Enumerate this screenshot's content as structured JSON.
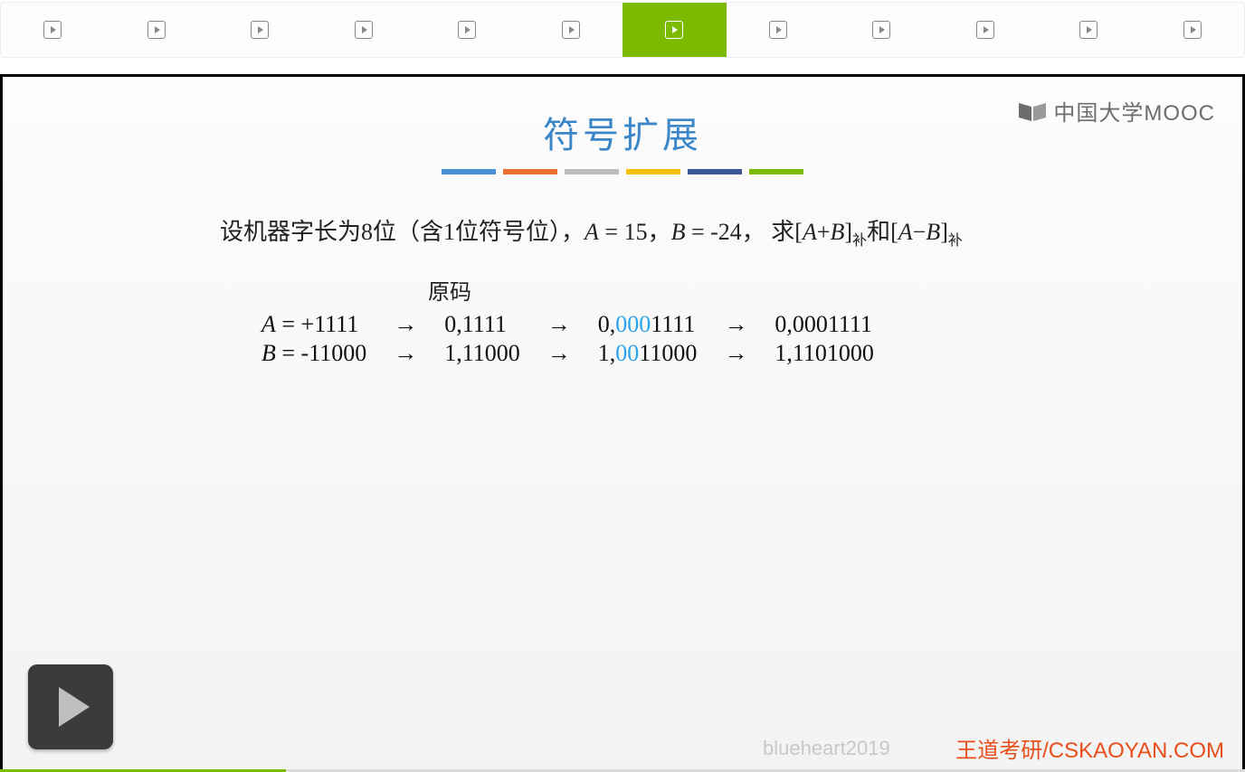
{
  "tabs": {
    "count": 12,
    "active_index": 6
  },
  "mooc_logo_text": "中国大学MOOC",
  "slide_title": "符号扩展",
  "color_bars": [
    "#4a90d9",
    "#e9702e",
    "#bdbdbd",
    "#f4c20d",
    "#3b5998",
    "#7cba00"
  ],
  "problem": {
    "prefix": "设机器字长为8位（含1位符号位），",
    "A_var": "A",
    "A_eq": " = 15，",
    "B_var": "B",
    "B_eq": " = -24，  求[",
    "expr1_l": "A",
    "expr1_op": "+",
    "expr1_r": "B",
    "mid1": "]",
    "sub1": "补",
    "mid2": "和[",
    "expr2_l": "A",
    "expr2_op": "−",
    "expr2_r": "B",
    "mid3": "]",
    "sub2": "补"
  },
  "yuanma_label": "原码",
  "rows": [
    {
      "var": "A",
      "eq": " = +1111",
      "c1": "0,1111",
      "c2": {
        "pre": "0,",
        "hl": "000",
        "post": "1111"
      },
      "c3": "0,0001111"
    },
    {
      "var": "B",
      "eq": " = -11000",
      "c1": "1,11000",
      "c2": {
        "pre": "1,",
        "hl": "00",
        "post": "11000"
      },
      "c3": "1,1101000"
    }
  ],
  "arrow": "→",
  "watermark1": "blueheart2019",
  "watermark2": "王道考研/CSKAOYAN.COM",
  "progress_percent": 23
}
